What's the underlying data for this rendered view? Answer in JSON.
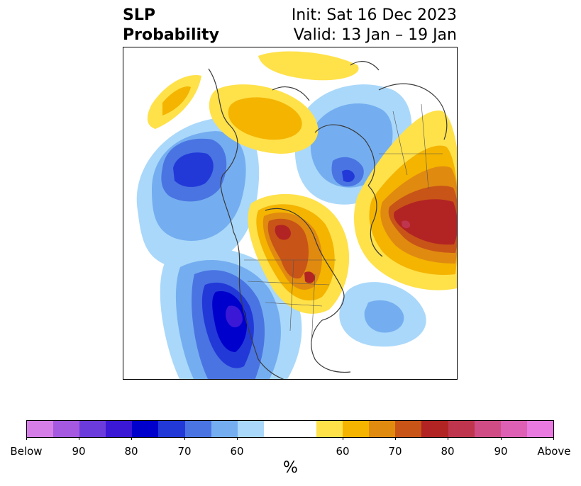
{
  "title": {
    "left_line1": "SLP",
    "left_line2": "Probability",
    "init": "Init: Sat 16 Dec 2023",
    "valid": "Valid: 13 Jan – 19 Jan"
  },
  "colorbar": {
    "colors": [
      "#d67ee8",
      "#a459e0",
      "#6c3bdc",
      "#3a18d6",
      "#0000cc",
      "#2239d8",
      "#4a74e2",
      "#74aef0",
      "#aad8fa",
      "#ffffff",
      "#ffe14a",
      "#f4b400",
      "#e08a10",
      "#c85418",
      "#b22424",
      "#c0354e",
      "#cf4d84",
      "#dd60b4",
      "#e87ae0"
    ],
    "labels": [
      "Below",
      "90",
      "80",
      "70",
      "60",
      "60",
      "70",
      "80",
      "90",
      "Above"
    ],
    "units": "%"
  },
  "map": {
    "projection": "north-polar-stereographic",
    "variable": "Sea level pressure tercile probability",
    "below_colors": [
      "#aad8fa",
      "#74aef0",
      "#4a74e2",
      "#2239d8",
      "#0000cc",
      "#3a18d6"
    ],
    "above_colors": [
      "#ffe14a",
      "#f4b400",
      "#e08a10",
      "#c85418",
      "#b22424",
      "#c0354e"
    ]
  }
}
